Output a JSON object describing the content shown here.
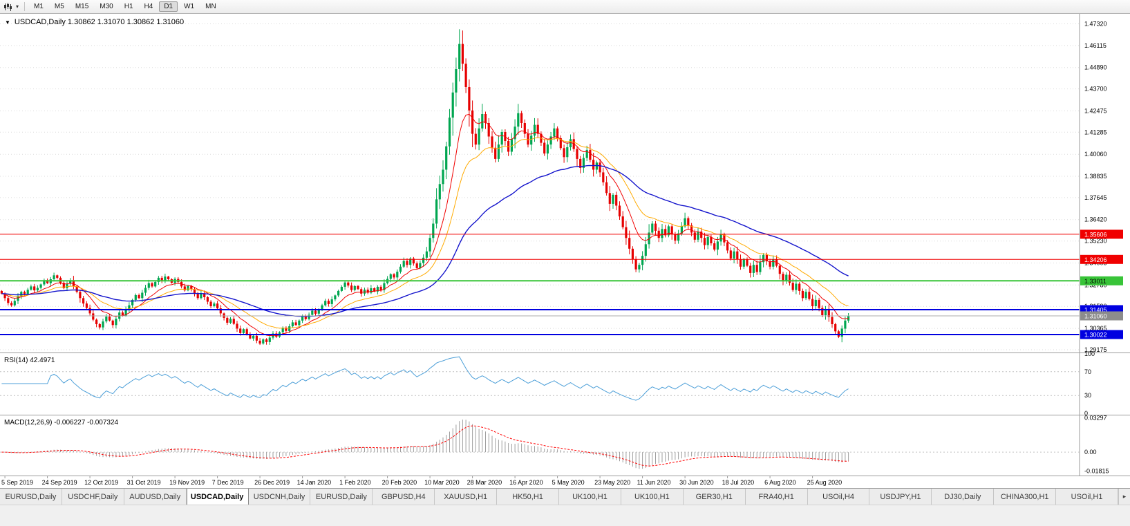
{
  "toolbar": {
    "timeframes": [
      "M1",
      "M5",
      "M15",
      "M30",
      "H1",
      "H4",
      "D1",
      "W1",
      "MN"
    ],
    "active_timeframe": "D1"
  },
  "icons": {
    "symbol_dropdown": "▼",
    "toolbar_caret": "▾",
    "tabs_scroll_right": "▸"
  },
  "chart_header": {
    "text": "USDCAD,Daily 1.30862 1.31070 1.30862 1.31060"
  },
  "chart_data": {
    "type": "candlestick",
    "symbol": "USDCAD",
    "timeframe": "Daily",
    "ohlc_current": {
      "open": "1.30862",
      "high": "1.31070",
      "low": "1.30862",
      "close": "1.31060"
    },
    "ylim": [
      1.2902,
      1.4788
    ],
    "y_ticks": [
      "1.47320",
      "1.46115",
      "1.44890",
      "1.43700",
      "1.42475",
      "1.41285",
      "1.40060",
      "1.38835",
      "1.37645",
      "1.36420",
      "1.35230",
      "1.34005",
      "1.32780",
      "1.31590",
      "1.30365",
      "1.29175"
    ],
    "x_labels": [
      "5 Sep 2019",
      "24 Sep 2019",
      "12 Oct 2019",
      "31 Oct 2019",
      "19 Nov 2019",
      "7 Dec 2019",
      "26 Dec 2019",
      "14 Jan 2020",
      "1 Feb 2020",
      "20 Feb 2020",
      "10 Mar 2020",
      "28 Mar 2020",
      "16 Apr 2020",
      "5 May 2020",
      "23 May 2020",
      "11 Jun 2020",
      "30 Jun 2020",
      "18 Jul 2020",
      "6 Aug 2020",
      "25 Aug 2020"
    ],
    "bars_per_label": 13,
    "first_open": 1.3245,
    "closes": [
      1.323,
      1.3205,
      1.3178,
      1.3165,
      1.319,
      1.3215,
      1.324,
      1.3228,
      1.3252,
      1.327,
      1.3248,
      1.3262,
      1.3281,
      1.3305,
      1.3288,
      1.331,
      1.3332,
      1.3318,
      1.329,
      1.326,
      1.3285,
      1.3305,
      1.327,
      1.324,
      1.3205,
      1.3175,
      1.315,
      1.312,
      1.3085,
      1.306,
      1.3042,
      1.3075,
      1.3102,
      1.308,
      1.3055,
      1.309,
      1.3125,
      1.3108,
      1.314,
      1.3165,
      1.3195,
      1.3222,
      1.3205,
      1.3235,
      1.3262,
      1.3288,
      1.327,
      1.3295,
      1.3318,
      1.33,
      1.3325,
      1.331,
      1.329,
      1.3312,
      1.3295,
      1.327,
      1.3248,
      1.3272,
      1.3255,
      1.3228,
      1.3205,
      1.3232,
      1.321,
      1.3185,
      1.316,
      1.3175,
      1.3148,
      1.312,
      1.3095,
      1.3068,
      1.309,
      1.3062,
      1.3035,
      1.301,
      1.3032,
      1.3005,
      1.298,
      1.2995,
      1.2968,
      1.2952,
      1.2975,
      1.296,
      1.2985,
      1.3008,
      1.299,
      1.3015,
      1.304,
      1.3022,
      1.3048,
      1.307,
      1.3055,
      1.308,
      1.3105,
      1.3088,
      1.3112,
      1.3135,
      1.3118,
      1.3142,
      1.3165,
      1.319,
      1.3172,
      1.3198,
      1.322,
      1.3245,
      1.3268,
      1.3292,
      1.3275,
      1.325,
      1.3272,
      1.3255,
      1.323,
      1.3252,
      1.3235,
      1.326,
      1.3242,
      1.3268,
      1.325,
      1.3288,
      1.3312,
      1.3338,
      1.332,
      1.3352,
      1.338,
      1.3412,
      1.339,
      1.3425,
      1.3398,
      1.3372,
      1.34,
      1.343,
      1.3465,
      1.354,
      1.362,
      1.3755,
      1.384,
      1.392,
      1.405,
      1.421,
      1.435,
      1.448,
      1.462,
      1.451,
      1.438,
      1.425,
      1.412,
      1.406,
      1.415,
      1.423,
      1.418,
      1.4105,
      1.4042,
      1.398,
      1.406,
      1.413,
      1.408,
      1.402,
      1.409,
      1.416,
      1.4235,
      1.418,
      1.412,
      1.406,
      1.411,
      1.417,
      1.412,
      1.407,
      1.401,
      1.406,
      1.4105,
      1.415,
      1.4095,
      1.404,
      1.399,
      1.4045,
      1.409,
      1.4035,
      1.398,
      1.393,
      1.3985,
      1.403,
      1.3975,
      1.392,
      1.396,
      1.3905,
      1.385,
      1.379,
      1.373,
      1.378,
      1.372,
      1.366,
      1.36,
      1.354,
      1.348,
      1.342,
      1.3365,
      1.339,
      1.344,
      1.3505,
      1.357,
      1.362,
      1.358,
      1.354,
      1.359,
      1.3555,
      1.3605,
      1.356,
      1.3525,
      1.3565,
      1.3605,
      1.365,
      1.361,
      1.357,
      1.353,
      1.3575,
      1.354,
      1.35,
      1.3545,
      1.351,
      1.3475,
      1.352,
      1.356,
      1.3515,
      1.347,
      1.3425,
      1.3465,
      1.342,
      1.338,
      1.342,
      1.3385,
      1.3345,
      1.339,
      1.335,
      1.3405,
      1.3445,
      1.341,
      1.338,
      1.342,
      1.3385,
      1.334,
      1.33,
      1.3335,
      1.329,
      1.325,
      1.3285,
      1.3245,
      1.3205,
      1.324,
      1.32,
      1.316,
      1.3195,
      1.315,
      1.311,
      1.3145,
      1.31,
      1.306,
      1.302,
      1.299,
      1.3035,
      1.308,
      1.3106
    ],
    "levels": [
      {
        "price": 1.35606,
        "label": "1.35606",
        "color": "#F00000",
        "width": 1,
        "text_color": "#FFFFFF"
      },
      {
        "price": 1.34206,
        "label": "1.34206",
        "color": "#F00000",
        "width": 1,
        "text_color": "#FFFFFF"
      },
      {
        "price": 1.33011,
        "label": "1.33011",
        "color": "#38C438",
        "width": 2,
        "text_color": "#000000"
      },
      {
        "price": 1.31405,
        "label": "1.31405",
        "color": "#0000E0",
        "width": 2,
        "text_color": "#FFFFFF"
      },
      {
        "price": 1.30022,
        "label": "1.30022",
        "color": "#0000E0",
        "width": 2,
        "text_color": "#FFFFFF"
      }
    ],
    "current_price": {
      "value": 1.3106,
      "label": "1.31060",
      "bg": "#8C8C8C",
      "text_color": "#FFFFFF"
    },
    "moving_averages": [
      {
        "period": 10,
        "color": "#F00000"
      },
      {
        "period": 21,
        "color": "#FFAA00"
      },
      {
        "period": 55,
        "color": "#1414CC"
      }
    ],
    "colors": {
      "background": "#FFFFFF",
      "up": "#00A650",
      "down": "#E60000",
      "grid": "#DBDBDB",
      "rsi_line": "#4C9FD8",
      "macd_hist": "#9E9E9E",
      "macd_signal": "#FF0000",
      "axis": "#9A9A9A"
    },
    "indicators": {
      "rsi": {
        "label": "RSI(14)",
        "value_text": "42.4971",
        "period": 14,
        "ticks": [
          100,
          70,
          30,
          0
        ],
        "levels": [
          70,
          30
        ]
      },
      "macd": {
        "label": "MACD(12,26,9)",
        "value_text": "-0.006227 -0.007324",
        "fast": 12,
        "slow": 26,
        "signal": 9,
        "ticks": [
          "0.03297",
          "0.00",
          "-0.01815"
        ],
        "ylim": [
          -0.0225,
          0.0345
        ]
      }
    }
  },
  "tabs": {
    "active_index": 3,
    "items": [
      "EURUSD,Daily",
      "USDCHF,Daily",
      "AUDUSD,Daily",
      "USDCAD,Daily",
      "USDCNH,Daily",
      "EURUSD,Daily",
      "GBPUSD,H4",
      "XAUUSD,H1",
      "HK50,H1",
      "UK100,H1",
      "UK100,H1",
      "GER30,H1",
      "FRA40,H1",
      "USOil,H4",
      "USDJPY,H1",
      "DJ30,Daily",
      "CHINA300,H1",
      "USOil,H1"
    ]
  }
}
